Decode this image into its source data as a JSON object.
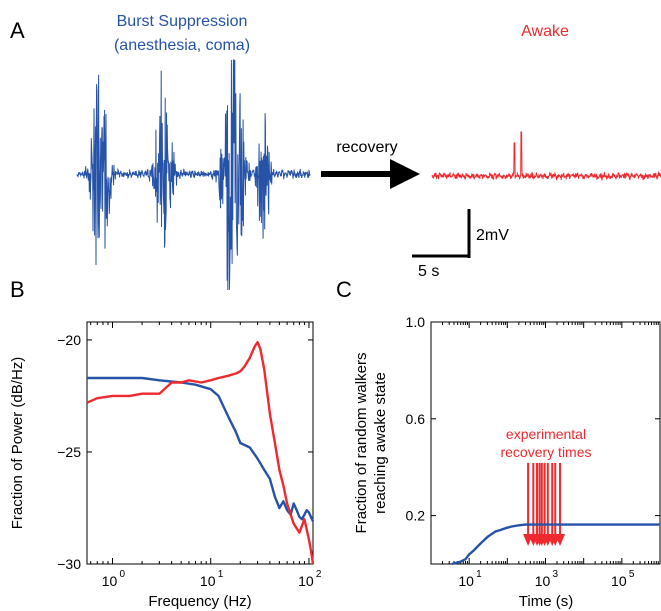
{
  "colors": {
    "blue": "#2653a8",
    "red": "#ee2a2f",
    "black": "#000000"
  },
  "panels": {
    "a": {
      "letter": "A",
      "left_title_line1": "Burst Suppression",
      "left_title_line2": "(anesthesia, coma)",
      "right_title": "Awake",
      "arrow_label": "recovery",
      "scalebar_voltage": "2mV",
      "scalebar_time": "5 s"
    },
    "b": {
      "letter": "B"
    },
    "c": {
      "letter": "C"
    }
  },
  "chart_data": [
    {
      "type": "line",
      "panel": "A",
      "series": [
        {
          "name": "Burst Suppression (anesthesia, coma)",
          "color": "#2653a8",
          "bursts_at_fraction_of_trace": [
            0.1,
            0.37,
            0.67,
            0.8
          ]
        },
        {
          "name": "Awake",
          "color": "#ee2a2f",
          "spikes_at_fraction_of_trace": [
            0.36,
            0.39
          ]
        }
      ],
      "scalebar": {
        "voltage": "2mV",
        "time": "5 s"
      }
    },
    {
      "type": "line",
      "panel": "B",
      "xlabel": "Frequency (Hz)",
      "ylabel": "Fraction of Power (dB/Hz)",
      "xscale": "log",
      "xlim": [
        0.55,
        110
      ],
      "ylim": [
        -30,
        -19.2
      ],
      "xticks": [
        1,
        10,
        100
      ],
      "xtick_labels": [
        "10",
        "10",
        "10"
      ],
      "xtick_exponents": [
        "0",
        "1",
        "2"
      ],
      "yticks": [
        -30,
        -25,
        -20
      ],
      "ytick_labels": [
        "−30",
        "−25",
        "−20"
      ],
      "series": [
        {
          "color": "#2653a8",
          "x": [
            0.55,
            1,
            2,
            3,
            5,
            7,
            10,
            12,
            15,
            18,
            20,
            25,
            30,
            35,
            40,
            45,
            50,
            55,
            60,
            65,
            70,
            75,
            80,
            85,
            90,
            95,
            100,
            110
          ],
          "y": [
            -21.7,
            -21.7,
            -21.7,
            -21.8,
            -21.9,
            -22.0,
            -22.2,
            -22.5,
            -23.4,
            -24.1,
            -24.6,
            -24.8,
            -25.3,
            -25.8,
            -26.2,
            -27.0,
            -27.5,
            -27.2,
            -27.6,
            -27.8,
            -27.3,
            -27.6,
            -27.9,
            -28.0,
            -27.8,
            -27.6,
            -27.7,
            -28.1
          ]
        },
        {
          "color": "#ee2a2f",
          "x": [
            0.55,
            0.7,
            1,
            1.5,
            2,
            3,
            4,
            5,
            6,
            8,
            10,
            12,
            15,
            18,
            20,
            22,
            25,
            28,
            30,
            32,
            35,
            40,
            45,
            50,
            55,
            60,
            70,
            80,
            90,
            100,
            105,
            110
          ],
          "y": [
            -22.8,
            -22.6,
            -22.5,
            -22.5,
            -22.4,
            -22.4,
            -21.9,
            -21.9,
            -21.8,
            -21.9,
            -21.8,
            -21.7,
            -21.6,
            -21.5,
            -21.4,
            -21.2,
            -20.8,
            -20.3,
            -20.1,
            -20.4,
            -21.3,
            -23.3,
            -24.6,
            -25.8,
            -26.5,
            -27.3,
            -28.2,
            -28.6,
            -28.0,
            -28.9,
            -29.4,
            -30.0
          ]
        }
      ]
    },
    {
      "type": "line",
      "panel": "C",
      "xlabel": "Time (s)",
      "ylabel_line1": "Fraction of random walkers",
      "ylabel_line2": "reaching awake state",
      "xscale": "log",
      "xlim": [
        1,
        1000000
      ],
      "ylim": [
        0,
        1.0
      ],
      "xticks": [
        10,
        1000,
        100000
      ],
      "xtick_labels": [
        "10",
        "10",
        "10"
      ],
      "xtick_exponents": [
        "1",
        "3",
        "5"
      ],
      "yticks": [
        0.2,
        0.6,
        1.0
      ],
      "ytick_labels": [
        "0.2",
        "0.6",
        "1.0"
      ],
      "annotation": {
        "line1": "experimental",
        "line2": "recovery times"
      },
      "recovery_times": [
        350,
        480,
        600,
        700,
        800,
        950,
        1150,
        1500,
        1800,
        2400
      ],
      "series": [
        {
          "color": "#2653a8",
          "x": [
            3.5,
            6,
            8,
            10,
            13,
            16,
            20,
            25,
            32,
            40,
            50,
            65,
            80,
            100,
            130,
            200,
            300,
            1000000
          ],
          "y": [
            0.0,
            0.01,
            0.02,
            0.04,
            0.055,
            0.07,
            0.085,
            0.1,
            0.115,
            0.125,
            0.135,
            0.14,
            0.145,
            0.15,
            0.155,
            0.16,
            0.163,
            0.163
          ]
        }
      ]
    }
  ]
}
